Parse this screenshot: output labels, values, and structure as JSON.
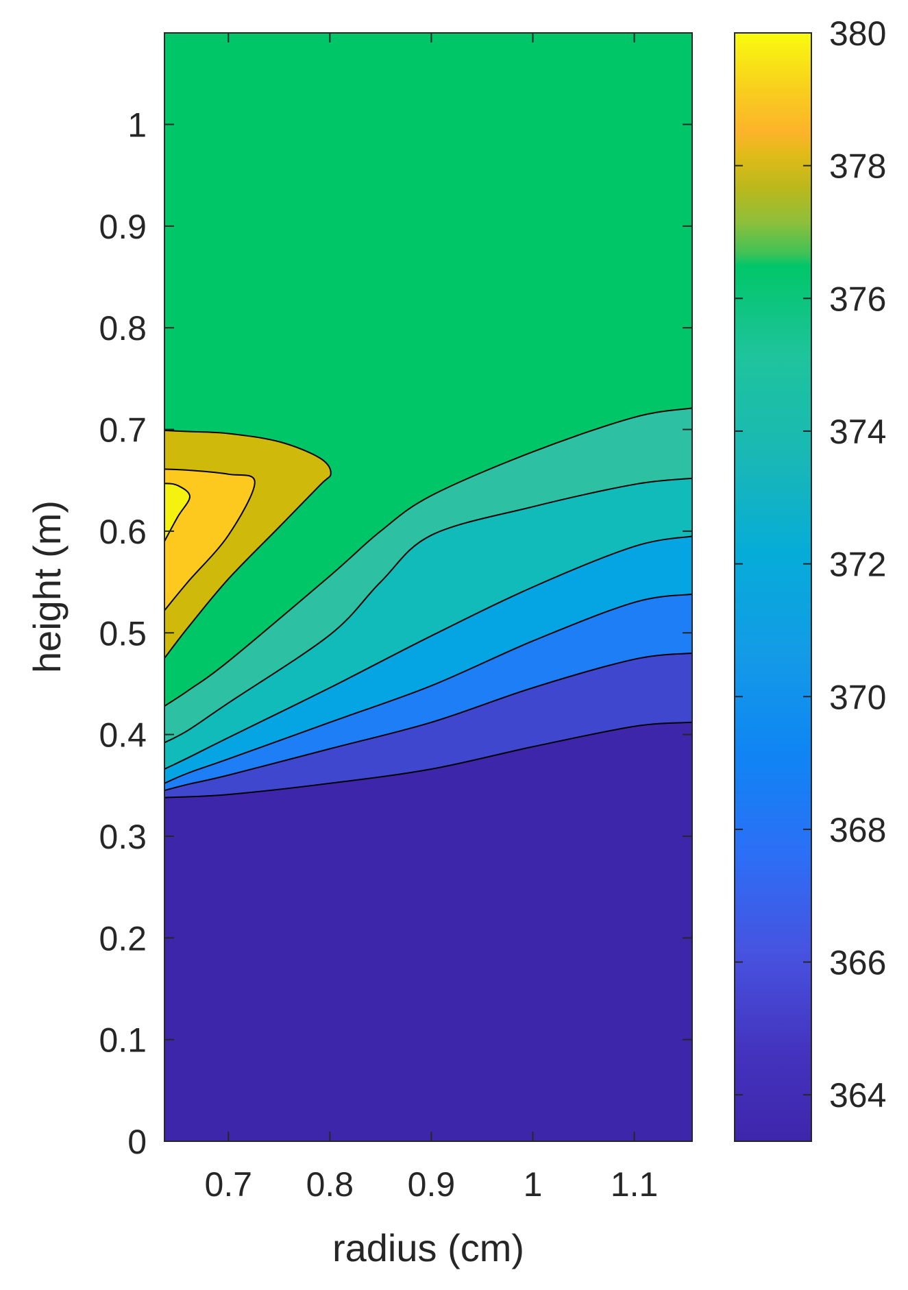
{
  "chart_data": {
    "type": "contour",
    "xlabel": "radius (cm)",
    "ylabel": "height (m)",
    "xlim": [
      0.637,
      1.157
    ],
    "ylim": [
      0,
      1.09
    ],
    "x_ticks": [
      0.7,
      0.8,
      0.9,
      1,
      1.1
    ],
    "x_tick_labels": [
      "0.7",
      "0.8",
      "0.9",
      "1",
      "1.1"
    ],
    "y_ticks": [
      0,
      0.1,
      0.2,
      0.3,
      0.4,
      0.5,
      0.6,
      0.7,
      0.8,
      0.9,
      1
    ],
    "y_tick_labels": [
      "0",
      "0.1",
      "0.2",
      "0.3",
      "0.4",
      "0.5",
      "0.6",
      "0.7",
      "0.8",
      "0.9",
      "1"
    ],
    "colorbar": {
      "range": [
        363.3,
        380
      ],
      "ticks": [
        364,
        366,
        368,
        370,
        372,
        374,
        376,
        378,
        380
      ],
      "tick_labels": [
        "364",
        "366",
        "368",
        "370",
        "372",
        "374",
        "376",
        "378",
        "380"
      ]
    },
    "background_color": "#00c668",
    "levels": [
      {
        "name": "level-1",
        "value": 365,
        "color": "#3e26ab",
        "points": [
          [
            0.637,
            0.338
          ],
          [
            0.7,
            0.341
          ],
          [
            0.8,
            0.352
          ],
          [
            0.9,
            0.366
          ],
          [
            1.0,
            0.388
          ],
          [
            1.1,
            0.408
          ],
          [
            1.157,
            0.412
          ]
        ]
      },
      {
        "name": "level-2",
        "value": 366.5,
        "color": "#3f47ce",
        "points": [
          [
            0.637,
            0.345
          ],
          [
            0.66,
            0.351
          ],
          [
            0.7,
            0.36
          ],
          [
            0.8,
            0.386
          ],
          [
            0.9,
            0.412
          ],
          [
            1.0,
            0.446
          ],
          [
            1.1,
            0.474
          ],
          [
            1.157,
            0.48
          ]
        ]
      },
      {
        "name": "level-3",
        "value": 368,
        "color": "#1d7ef6",
        "points": [
          [
            0.637,
            0.352
          ],
          [
            0.66,
            0.362
          ],
          [
            0.7,
            0.376
          ],
          [
            0.8,
            0.412
          ],
          [
            0.9,
            0.448
          ],
          [
            1.0,
            0.492
          ],
          [
            1.1,
            0.53
          ],
          [
            1.157,
            0.538
          ]
        ]
      },
      {
        "name": "level-4",
        "value": 369.5,
        "color": "#05a4e2",
        "points": [
          [
            0.637,
            0.366
          ],
          [
            0.66,
            0.377
          ],
          [
            0.7,
            0.397
          ],
          [
            0.8,
            0.446
          ],
          [
            0.9,
            0.497
          ],
          [
            1.0,
            0.545
          ],
          [
            1.1,
            0.585
          ],
          [
            1.157,
            0.595
          ]
        ]
      },
      {
        "name": "level-5",
        "value": 371,
        "color": "#11bbb9",
        "points": [
          [
            0.637,
            0.392
          ],
          [
            0.66,
            0.404
          ],
          [
            0.7,
            0.431
          ],
          [
            0.8,
            0.498
          ],
          [
            0.85,
            0.55
          ],
          [
            0.9,
            0.596
          ],
          [
            1.0,
            0.624
          ],
          [
            1.1,
            0.646
          ],
          [
            1.157,
            0.652
          ]
        ]
      },
      {
        "name": "level-6",
        "value": 372.5,
        "color": "#2dc0a2",
        "points": [
          [
            0.637,
            0.428
          ],
          [
            0.66,
            0.443
          ],
          [
            0.7,
            0.472
          ],
          [
            0.8,
            0.556
          ],
          [
            0.85,
            0.6
          ],
          [
            0.9,
            0.635
          ],
          [
            1.0,
            0.678
          ],
          [
            1.1,
            0.712
          ],
          [
            1.157,
            0.721
          ]
        ]
      }
    ],
    "hotspot_levels": [
      {
        "name": "hotspot-outer",
        "value": 376,
        "color": "#cfba0c",
        "points": [
          [
            0.637,
            0.475
          ],
          [
            0.66,
            0.505
          ],
          [
            0.7,
            0.553
          ],
          [
            0.75,
            0.604
          ],
          [
            0.79,
            0.645
          ],
          [
            0.801,
            0.657
          ],
          [
            0.79,
            0.672
          ],
          [
            0.75,
            0.688
          ],
          [
            0.7,
            0.696
          ],
          [
            0.66,
            0.698
          ],
          [
            0.637,
            0.699
          ]
        ]
      },
      {
        "name": "hotspot-middle",
        "value": 377.5,
        "color": "#fdc91f",
        "points": [
          [
            0.637,
            0.522
          ],
          [
            0.66,
            0.55
          ],
          [
            0.7,
            0.596
          ],
          [
            0.726,
            0.648
          ],
          [
            0.7,
            0.656
          ],
          [
            0.66,
            0.66
          ],
          [
            0.637,
            0.661
          ]
        ]
      },
      {
        "name": "hotspot-inner",
        "value": 379,
        "color": "#f5f210",
        "points": [
          [
            0.637,
            0.59
          ],
          [
            0.65,
            0.614
          ],
          [
            0.662,
            0.634
          ],
          [
            0.65,
            0.645
          ],
          [
            0.637,
            0.647
          ]
        ]
      }
    ]
  }
}
